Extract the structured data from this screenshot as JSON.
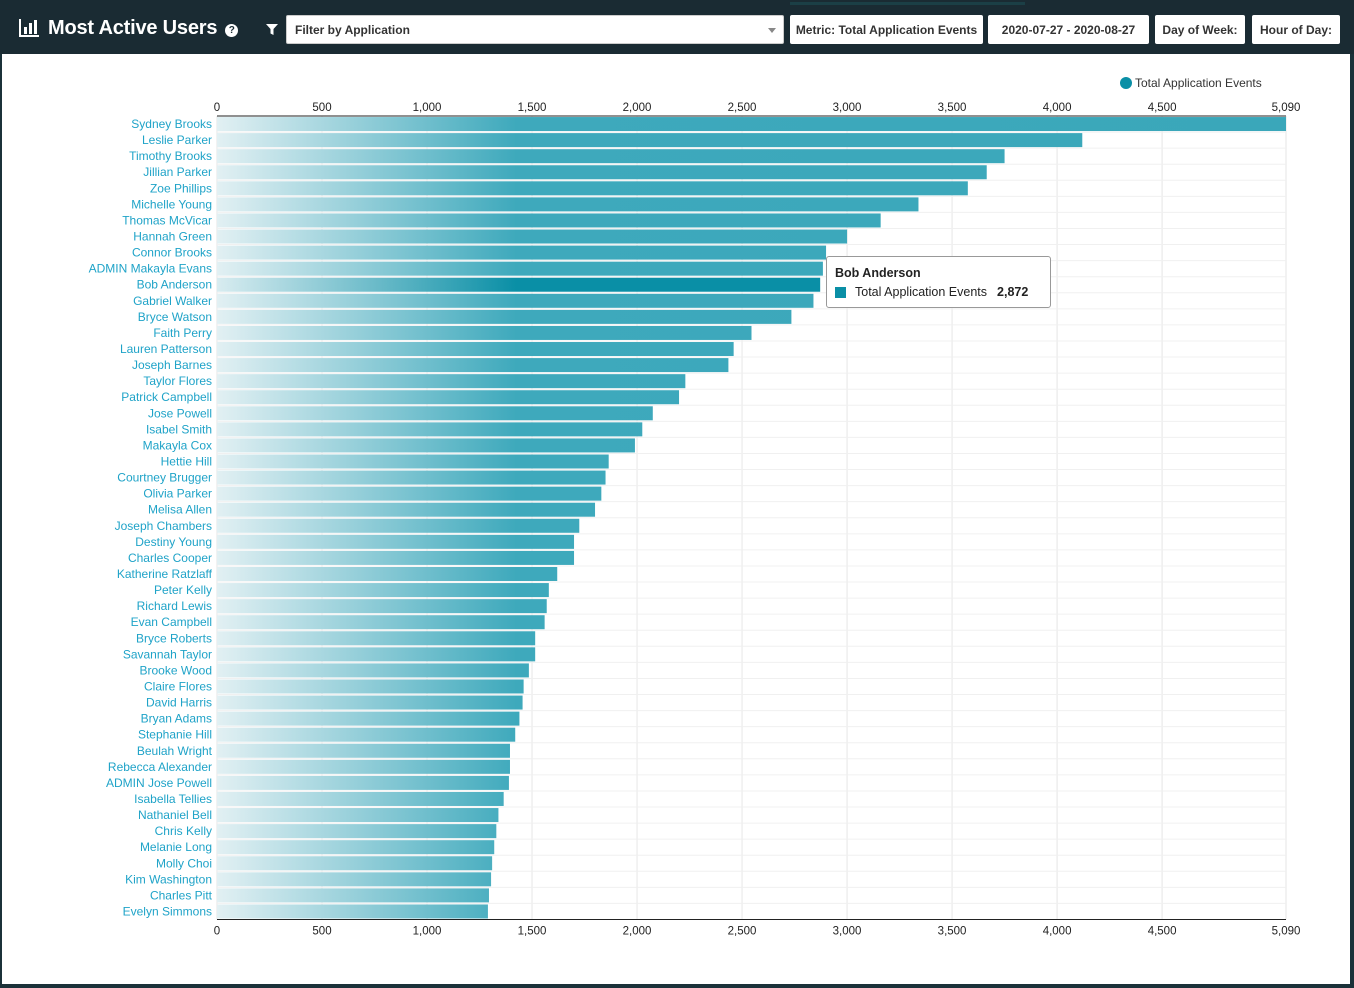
{
  "header": {
    "title": "Most Active Users",
    "help_icon": "question-circle-icon",
    "chart_icon": "bar-chart-icon",
    "filter_icon": "funnel-icon",
    "filter_placeholder": "Filter by Application",
    "metric_label": "Metric: Total Application Events",
    "date_range_label": "2020-07-27 - 2020-08-27",
    "day_of_week_label": "Day of Week:",
    "hour_of_day_label": "Hour of Day:"
  },
  "colors": {
    "accent": "#0a8fa6",
    "header_bg": "#1a2b33",
    "label": "#1fa3c8",
    "bar_light": "#dcedf0",
    "bar_dark": "#3aa7ba",
    "bar_highlight": "#0a8fa6"
  },
  "tooltip": {
    "name": "Bob Anderson",
    "series": "Total Application Events",
    "value": "2,872"
  },
  "chart_data": {
    "type": "bar",
    "orientation": "horizontal",
    "legend": {
      "label": "Total Application Events",
      "placement": "top-right"
    },
    "xlim": [
      0,
      5090
    ],
    "x_ticks": [
      "0",
      "500",
      "1,000",
      "1,500",
      "2,000",
      "2,500",
      "3,000",
      "3,500",
      "4,000",
      "4,500",
      "5,090"
    ],
    "grid": true,
    "highlighted": "Bob Anderson",
    "categories": [
      "Sydney Brooks",
      "Leslie Parker",
      "Timothy Brooks",
      "Jillian Parker",
      "Zoe Phillips",
      "Michelle Young",
      "Thomas McVicar",
      "Hannah Green",
      "Connor Brooks",
      "ADMIN Makayla Evans",
      "Bob Anderson",
      "Gabriel Walker",
      "Bryce Watson",
      "Faith Perry",
      "Lauren Patterson",
      "Joseph Barnes",
      "Taylor Flores",
      "Patrick Campbell",
      "Jose Powell",
      "Isabel Smith",
      "Makayla Cox",
      "Hettie Hill",
      "Courtney Brugger",
      "Olivia Parker",
      "Melisa Allen",
      "Joseph Chambers",
      "Destiny Young",
      "Charles Cooper",
      "Katherine Ratzlaff",
      "Peter Kelly",
      "Richard Lewis",
      "Evan Campbell",
      "Bryce Roberts",
      "Savannah Taylor",
      "Brooke Wood",
      "Claire Flores",
      "David Harris",
      "Bryan Adams",
      "Stephanie Hill",
      "Beulah Wright",
      "Rebecca Alexander",
      "ADMIN Jose Powell",
      "Isabella Tellies",
      "Nathaniel Bell",
      "Chris Kelly",
      "Melanie Long",
      "Molly Choi",
      "Kim Washington",
      "Charles Pitt",
      "Evelyn Simmons"
    ],
    "values": [
      5090,
      4120,
      3750,
      3665,
      3575,
      3340,
      3160,
      3000,
      2900,
      2885,
      2872,
      2840,
      2735,
      2545,
      2460,
      2435,
      2230,
      2200,
      2075,
      2025,
      1990,
      1865,
      1850,
      1830,
      1800,
      1725,
      1700,
      1700,
      1620,
      1580,
      1570,
      1560,
      1515,
      1515,
      1485,
      1460,
      1455,
      1440,
      1420,
      1395,
      1395,
      1390,
      1365,
      1340,
      1330,
      1320,
      1310,
      1305,
      1295,
      1290
    ]
  }
}
